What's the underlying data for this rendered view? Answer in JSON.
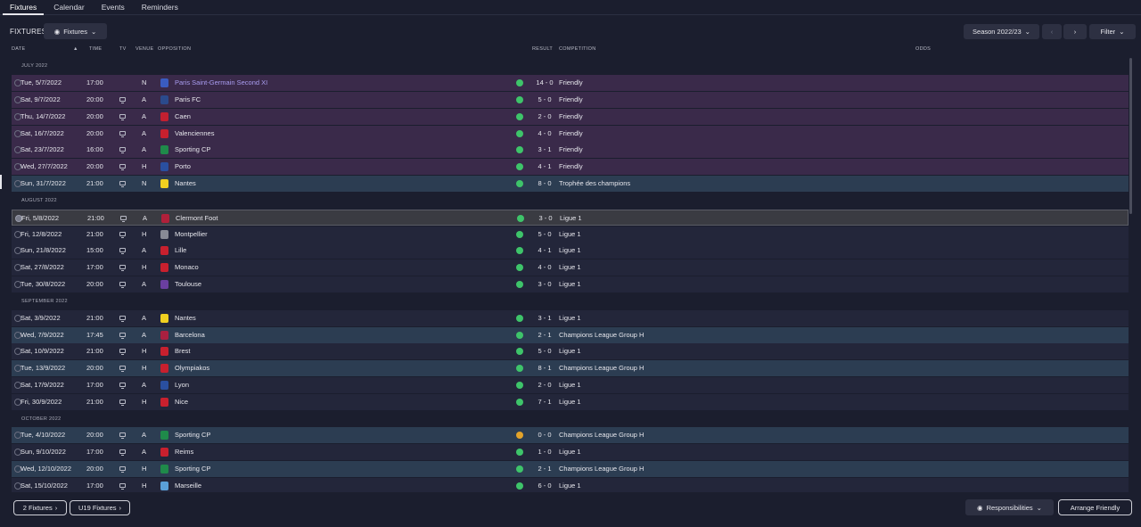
{
  "tabs": [
    "Fixtures",
    "Calendar",
    "Events",
    "Reminders"
  ],
  "toolbar": {
    "title": "FIXTURES",
    "view_label": "Fixtures",
    "season_label": "Season 2022/23",
    "filter_label": "Filter"
  },
  "columns": {
    "date": "DATE",
    "time": "TIME",
    "tv": "TV",
    "venue": "VENUE",
    "opposition": "OPPOSITION",
    "result": "RESULT",
    "competition": "COMPETITION",
    "odds": "ODDS"
  },
  "months": [
    "JULY 2022",
    "AUGUST 2022",
    "SEPTEMBER 2022",
    "OCTOBER 2022"
  ],
  "fixtures": [
    {
      "date": "Tue, 5/7/2022",
      "time": "17:00",
      "tv": false,
      "venue": "N",
      "opp": "Paris Saint-Germain Second XI",
      "result": "14 - 0",
      "comp": "Friendly"
    },
    {
      "date": "Sat, 9/7/2022",
      "time": "20:00",
      "tv": true,
      "venue": "A",
      "opp": "Paris FC",
      "result": "5 - 0",
      "comp": "Friendly"
    },
    {
      "date": "Thu, 14/7/2022",
      "time": "20:00",
      "tv": true,
      "venue": "A",
      "opp": "Caen",
      "result": "2 - 0",
      "comp": "Friendly"
    },
    {
      "date": "Sat, 16/7/2022",
      "time": "20:00",
      "tv": true,
      "venue": "A",
      "opp": "Valenciennes",
      "result": "4 - 0",
      "comp": "Friendly"
    },
    {
      "date": "Sat, 23/7/2022",
      "time": "16:00",
      "tv": true,
      "venue": "A",
      "opp": "Sporting CP",
      "result": "3 - 1",
      "comp": "Friendly"
    },
    {
      "date": "Wed, 27/7/2022",
      "time": "20:00",
      "tv": true,
      "venue": "H",
      "opp": "Porto",
      "result": "4 - 1",
      "comp": "Friendly"
    },
    {
      "date": "Sun, 31/7/2022",
      "time": "21:00",
      "tv": true,
      "venue": "N",
      "opp": "Nantes",
      "result": "8 - 0",
      "comp": "Trophée des champions"
    },
    {
      "date": "Fri, 5/8/2022",
      "time": "21:00",
      "tv": true,
      "venue": "A",
      "opp": "Clermont Foot",
      "result": "3 - 0",
      "comp": "Ligue 1"
    },
    {
      "date": "Fri, 12/8/2022",
      "time": "21:00",
      "tv": true,
      "venue": "H",
      "opp": "Montpellier",
      "result": "5 - 0",
      "comp": "Ligue 1"
    },
    {
      "date": "Sun, 21/8/2022",
      "time": "15:00",
      "tv": true,
      "venue": "A",
      "opp": "Lille",
      "result": "4 - 1",
      "comp": "Ligue 1"
    },
    {
      "date": "Sat, 27/8/2022",
      "time": "17:00",
      "tv": true,
      "venue": "H",
      "opp": "Monaco",
      "result": "4 - 0",
      "comp": "Ligue 1"
    },
    {
      "date": "Tue, 30/8/2022",
      "time": "20:00",
      "tv": true,
      "venue": "A",
      "opp": "Toulouse",
      "result": "3 - 0",
      "comp": "Ligue 1"
    },
    {
      "date": "Sat, 3/9/2022",
      "time": "21:00",
      "tv": true,
      "venue": "A",
      "opp": "Nantes",
      "result": "3 - 1",
      "comp": "Ligue 1"
    },
    {
      "date": "Wed, 7/9/2022",
      "time": "17:45",
      "tv": true,
      "venue": "A",
      "opp": "Barcelona",
      "result": "2 - 1",
      "comp": "Champions League Group H"
    },
    {
      "date": "Sat, 10/9/2022",
      "time": "21:00",
      "tv": true,
      "venue": "H",
      "opp": "Brest",
      "result": "5 - 0",
      "comp": "Ligue 1"
    },
    {
      "date": "Tue, 13/9/2022",
      "time": "20:00",
      "tv": true,
      "venue": "H",
      "opp": "Olympiakos",
      "result": "8 - 1",
      "comp": "Champions League Group H"
    },
    {
      "date": "Sat, 17/9/2022",
      "time": "17:00",
      "tv": true,
      "venue": "A",
      "opp": "Lyon",
      "result": "2 - 0",
      "comp": "Ligue 1"
    },
    {
      "date": "Fri, 30/9/2022",
      "time": "21:00",
      "tv": true,
      "venue": "H",
      "opp": "Nice",
      "result": "7 - 1",
      "comp": "Ligue 1"
    },
    {
      "date": "Tue, 4/10/2022",
      "time": "20:00",
      "tv": true,
      "venue": "A",
      "opp": "Sporting CP",
      "result": "0 - 0",
      "comp": "Champions League Group H"
    },
    {
      "date": "Sun, 9/10/2022",
      "time": "17:00",
      "tv": true,
      "venue": "A",
      "opp": "Reims",
      "result": "1 - 0",
      "comp": "Ligue 1"
    },
    {
      "date": "Wed, 12/10/2022",
      "time": "20:00",
      "tv": true,
      "venue": "H",
      "opp": "Sporting CP",
      "result": "2 - 1",
      "comp": "Champions League Group H"
    },
    {
      "date": "Sat, 15/10/2022",
      "time": "17:00",
      "tv": true,
      "venue": "H",
      "opp": "Marseille",
      "result": "6 - 0",
      "comp": "Ligue 1"
    }
  ],
  "bottom": {
    "fixtures2_label": "2 Fixtures",
    "u19_label": "U19 Fixtures",
    "responsibilities_label": "Responsibilities",
    "arrange_label": "Arrange Friendly"
  },
  "colors": {
    "background": "#1b1e2e",
    "friendly_row": "#3a2a4a",
    "cup_row": "#2c3d52",
    "league_row": "#23263a",
    "win": "#3ec46a",
    "draw": "#e3a32a",
    "highlight_text": "#a99cf0"
  }
}
